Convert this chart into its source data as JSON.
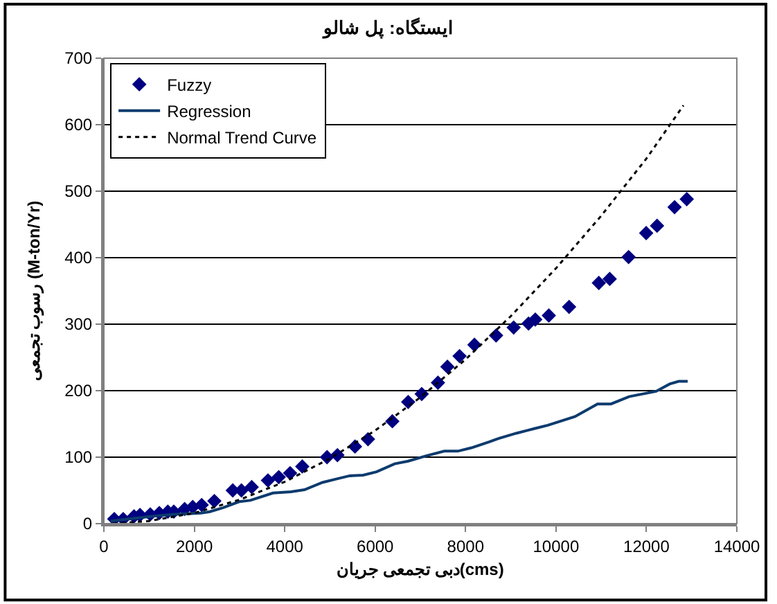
{
  "chart_data": {
    "type": "line",
    "title": "ایستگاه: پل شالو",
    "xlabel": "دبی تجمعی جریان(cms)",
    "ylabel": "رسوب تجمعی (M-ton/Yr)",
    "xlim": [
      0,
      14000
    ],
    "xticks": [
      0,
      2000,
      4000,
      6000,
      8000,
      10000,
      12000,
      14000
    ],
    "ylim": [
      0,
      700
    ],
    "yticks": [
      0,
      100,
      200,
      300,
      400,
      500,
      600,
      700
    ],
    "grid": "y",
    "legend": "top left",
    "series": [
      {
        "name": "Fuzzy",
        "type": "scatter",
        "marker": "diamond",
        "color": "#000080",
        "x": [
          230,
          428,
          667,
          799,
          1026,
          1226,
          1415,
          1547,
          1786,
          1965,
          2163,
          2444,
          2851,
          3042,
          3270,
          3629,
          3868,
          4119,
          4388,
          4936,
          5166,
          5555,
          5842,
          6380,
          6731,
          7030,
          7389,
          7598,
          7867,
          8196,
          8675,
          9064,
          9393,
          9542,
          9842,
          10290,
          10948,
          11188,
          11606,
          11995,
          12235,
          12623,
          12893
        ],
        "values": [
          7,
          7,
          11,
          13,
          14,
          16,
          18,
          18,
          22,
          25,
          28,
          34,
          50,
          50,
          55,
          65,
          70,
          76,
          86,
          100,
          103,
          116,
          127,
          154,
          183,
          195,
          212,
          236,
          252,
          269,
          283,
          295,
          301,
          307,
          313,
          326,
          362,
          368,
          401,
          437,
          448,
          476,
          488
        ]
      },
      {
        "name": "Regression",
        "line_style": "solid",
        "color": "#0d3b6e",
        "x": [
          150,
          1047,
          1547,
          2144,
          2343,
          2641,
          2991,
          3240,
          3739,
          4138,
          4437,
          4836,
          5136,
          5435,
          5734,
          6033,
          6431,
          6731,
          7129,
          7529,
          7828,
          8127,
          8525,
          8726,
          9124,
          9523,
          9822,
          10419,
          10919,
          11217,
          11616,
          12215,
          12514,
          12713,
          12913
        ],
        "values": [
          4,
          11,
          14,
          16,
          18,
          24,
          33,
          35,
          46,
          48,
          51,
          62,
          67,
          72,
          73,
          78,
          90,
          94,
          102,
          109,
          109,
          114,
          123,
          128,
          136,
          143,
          148,
          161,
          180,
          180,
          191,
          199,
          210,
          214,
          214
        ]
      },
      {
        "name": "Normal Trend Curve",
        "line_style": "dotted",
        "color": "#000000",
        "x": [
          200,
          1000,
          2000,
          3000,
          4000,
          5000,
          6000,
          7000,
          8000,
          9000,
          10000,
          11000,
          12000,
          12820
        ],
        "values": [
          0,
          4,
          16,
          36,
          63,
          98,
          140,
          190,
          247,
          312,
          384,
          463,
          549,
          629
        ]
      }
    ]
  }
}
